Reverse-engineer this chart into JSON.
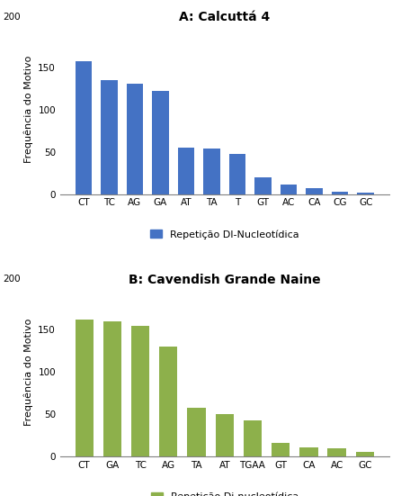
{
  "chart_a": {
    "title": "A: Calcuttá 4",
    "categories": [
      "CT",
      "TC",
      "AG",
      "GA",
      "AT",
      "TA",
      "T",
      "GT",
      "AC",
      "CA",
      "CG",
      "GC"
    ],
    "values": [
      157,
      135,
      130,
      122,
      55,
      54,
      47,
      20,
      11,
      7,
      3,
      2
    ],
    "bar_color": "#4472C4",
    "ylabel": "Frequência do Motivo",
    "ylim": [
      0,
      200
    ],
    "yticks": [
      0,
      50,
      100,
      150
    ],
    "ytick_labels": [
      "0",
      "50",
      "100",
      "150"
    ],
    "y200_label": "200",
    "legend_label": "Repetição DI-Nucleotídica"
  },
  "chart_b": {
    "title": "B: Cavendish Grande Naine",
    "categories": [
      "CT",
      "GA",
      "TC",
      "AG",
      "TA",
      "AT",
      "TGAA",
      "GT",
      "CA",
      "AC",
      "GC"
    ],
    "values": [
      162,
      160,
      154,
      130,
      57,
      50,
      43,
      16,
      11,
      9,
      5
    ],
    "bar_color": "#8DB04B",
    "ylabel": "Frequência do Motivo",
    "ylim": [
      0,
      200
    ],
    "yticks": [
      0,
      50,
      100,
      150
    ],
    "ytick_labels": [
      "0",
      "50",
      "100",
      "150"
    ],
    "y200_label": "200",
    "legend_label": "Repetição Di-nucleotídica"
  },
  "background_color": "#ffffff",
  "title_fontsize": 10,
  "ylabel_fontsize": 8,
  "tick_fontsize": 7.5,
  "legend_fontsize": 8
}
